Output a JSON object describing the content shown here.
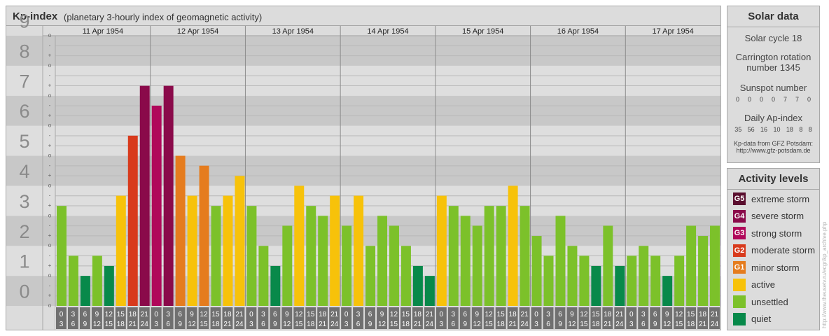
{
  "header": {
    "title": "Kp-index",
    "subtitle": "(planetary 3-hourly index of geomagnetic activity)"
  },
  "solar": {
    "title": "Solar data",
    "cycle": "Solar cycle 18",
    "carrington_line1": "Carrington rotation",
    "carrington_line2": "number 1345",
    "sunspot_label": "Sunspot number",
    "sunspot_values": [
      "0",
      "0",
      "0",
      "0",
      "7",
      "7",
      "0"
    ],
    "ap_label": "Daily Ap-index",
    "ap_values": [
      "35",
      "56",
      "16",
      "10",
      "18",
      "8",
      "8"
    ],
    "credit_line1": "Kp-data from GFZ Potsdam:",
    "credit_line2": "http://www.gfz-potsdam.de"
  },
  "levels": {
    "title": "Activity levels",
    "items": [
      {
        "badge": "G5",
        "label": "extreme storm",
        "color": "#5a0e2e"
      },
      {
        "badge": "G4",
        "label": "severe storm",
        "color": "#8a0a4a"
      },
      {
        "badge": "G3",
        "label": "strong storm",
        "color": "#b0085a"
      },
      {
        "badge": "G2",
        "label": "moderate storm",
        "color": "#d83a1c"
      },
      {
        "badge": "G1",
        "label": "minor storm",
        "color": "#e57c1e"
      },
      {
        "badge": "",
        "label": "active",
        "color": "#f7c20a"
      },
      {
        "badge": "",
        "label": "unsettled",
        "color": "#7cc12a"
      },
      {
        "badge": "",
        "label": "quiet",
        "color": "#08894a"
      }
    ]
  },
  "watermark": "http://www.theusetv.ru/ecgr/kp_archive.php",
  "chart_data": {
    "type": "bar",
    "title": "Kp-index",
    "ylim": [
      0,
      9
    ],
    "y_ticks": [
      "0",
      "1",
      "2",
      "3",
      "4",
      "5",
      "6",
      "7",
      "8",
      "9"
    ],
    "sub_ticks": [
      "o",
      "+",
      "-"
    ],
    "days": [
      "11 Apr 1954",
      "12 Apr 1954",
      "13 Apr 1954",
      "14 Apr 1954",
      "15 Apr 1954",
      "16 Apr 1954",
      "17 Apr 1954"
    ],
    "interval_start": [
      "0",
      "3",
      "6",
      "9",
      "12",
      "15",
      "18",
      "21"
    ],
    "interval_end": [
      "3",
      "6",
      "9",
      "12",
      "15",
      "18",
      "21",
      "24"
    ],
    "values": [
      3.33,
      1.67,
      1.0,
      1.67,
      1.33,
      3.67,
      5.67,
      7.33,
      6.67,
      7.33,
      5.0,
      3.67,
      4.67,
      3.33,
      3.67,
      4.33,
      3.33,
      2.0,
      1.33,
      2.67,
      4.0,
      3.33,
      3.0,
      3.67,
      2.67,
      3.67,
      2.0,
      3.0,
      2.67,
      2.0,
      1.33,
      1.0,
      3.67,
      3.33,
      3.0,
      2.67,
      3.33,
      3.33,
      4.0,
      3.33,
      2.33,
      1.67,
      3.0,
      2.0,
      1.67,
      1.33,
      2.67,
      1.33,
      1.67,
      2.0,
      1.67,
      1.0,
      1.67,
      2.67,
      2.33,
      2.67
    ],
    "colors": {
      "quiet": "#08894a",
      "unsettled": "#7cc12a",
      "active": "#f7c20a",
      "g1": "#e57c1e",
      "g2": "#d83a1c",
      "g3": "#b0085a",
      "g4": "#8a0a4a",
      "g5": "#5a0e2e"
    }
  }
}
